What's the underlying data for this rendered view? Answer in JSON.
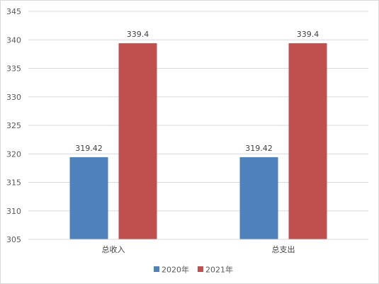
{
  "chart_data": {
    "type": "bar",
    "categories": [
      "总收入",
      "总支出"
    ],
    "series": [
      {
        "name": "2020年",
        "values": [
          319.42,
          319.42
        ],
        "color": "#4f81bd",
        "labels": [
          "319.42",
          "319.42"
        ]
      },
      {
        "name": "2021年",
        "values": [
          339.4,
          339.4
        ],
        "color": "#c0504d",
        "labels": [
          "339.4",
          "339.4"
        ]
      }
    ],
    "title": "",
    "xlabel": "",
    "ylabel": "",
    "ylim": [
      305,
      345
    ],
    "ytick_step": 5,
    "yticks": [
      "305",
      "310",
      "315",
      "320",
      "325",
      "330",
      "335",
      "340",
      "345"
    ],
    "grid": true,
    "gridline_color": "#d9d9d9",
    "legend_position": "bottom"
  }
}
